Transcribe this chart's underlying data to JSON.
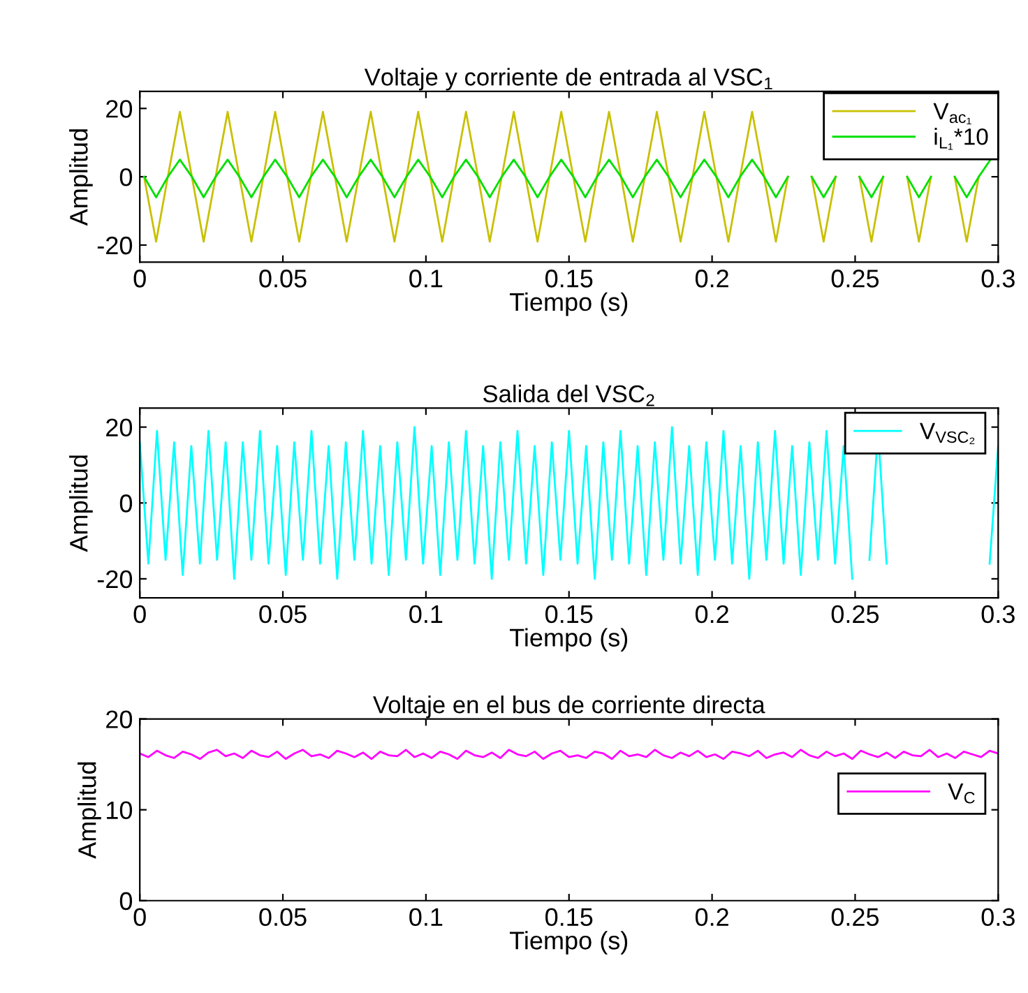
{
  "chart_data": [
    {
      "type": "line",
      "title": "Voltaje y corriente de entrada al VSC$_{1}$",
      "xlabel": "Tiempo (s)",
      "ylabel": "Amplitud",
      "x": [
        0.0015,
        0.0057,
        0.0098,
        0.014,
        0.0182,
        0.0223,
        0.0265,
        0.0307,
        0.0348,
        0.039,
        0.0432,
        0.0473,
        0.0515,
        0.0557,
        0.0598,
        0.064,
        0.0682,
        0.0723,
        0.0765,
        0.0807,
        0.0848,
        0.089,
        0.0932,
        0.0973,
        0.1015,
        0.1057,
        0.1098,
        0.114,
        0.1182,
        0.1223,
        0.1265,
        0.1307,
        0.1348,
        0.139,
        0.1432,
        0.1473,
        0.1515,
        0.1557,
        0.1598,
        0.164,
        0.1682,
        0.1723,
        0.1765,
        0.1807,
        0.1848,
        0.189,
        0.1932,
        0.1973,
        0.2015,
        0.2057,
        0.2098,
        0.214,
        0.2182,
        0.2223,
        0.2265,
        0.2307,
        0.2348,
        0.239,
        0.2432,
        0.2473,
        0.2515,
        0.2557,
        0.2598,
        0.264,
        0.2682,
        0.2723,
        0.2765,
        0.2807,
        0.2848,
        0.289,
        0.2932,
        0.2973
      ],
      "series": [
        {
          "name": "V$_{ac₁}$",
          "color": "#c8c000",
          "values": [
            0,
            -19,
            0,
            19,
            0,
            -19,
            0,
            19,
            0,
            -19,
            0,
            19,
            0,
            -19,
            0,
            19,
            0,
            -19,
            0,
            19,
            0,
            -19,
            0,
            19,
            0,
            -19,
            0,
            19,
            0,
            -19,
            0,
            19,
            0,
            -19,
            0,
            19,
            0,
            -19,
            0,
            19,
            0,
            -19,
            0,
            19,
            0,
            -19,
            0,
            19,
            0,
            -19,
            0,
            19,
            0,
            -19,
            0,
            null,
            0,
            -19,
            0,
            null,
            0,
            -19,
            0,
            null,
            0,
            -19,
            0,
            null,
            0,
            -19,
            0,
            null
          ]
        },
        {
          "name": "i$_{L₁}$*10",
          "color": "#00e000",
          "values": [
            0,
            -6,
            0,
            5,
            0,
            -6,
            0,
            5,
            0,
            -6,
            0,
            5,
            0,
            -6,
            0,
            5,
            0,
            -6,
            0,
            5,
            0,
            -6,
            0,
            5,
            0,
            -6,
            0,
            5,
            0,
            -6,
            0,
            5,
            0,
            -6,
            0,
            5,
            0,
            -6,
            0,
            5,
            0,
            -6,
            0,
            5,
            0,
            -6,
            0,
            5,
            0,
            -6,
            0,
            5,
            0,
            -6,
            0,
            null,
            0,
            -6,
            0,
            null,
            0,
            -6,
            0,
            null,
            0,
            -6,
            0,
            null,
            0,
            -6,
            0,
            5
          ]
        }
      ],
      "xlim": [
        0,
        0.3
      ],
      "xticks": [
        0,
        0.05,
        0.1,
        0.15,
        0.2,
        0.25,
        0.3
      ],
      "ylim": [
        -25,
        25
      ],
      "yticks": [
        -20,
        0,
        20
      ],
      "legend": "top right",
      "grid": false
    },
    {
      "type": "line",
      "title": "Salida del VSC$_{2}$",
      "xlabel": "Tiempo (s)",
      "ylabel": "Amplitud",
      "x": [
        0,
        0.003,
        0.006,
        0.009,
        0.012,
        0.015,
        0.018,
        0.021,
        0.024,
        0.027,
        0.03,
        0.033,
        0.036,
        0.039,
        0.042,
        0.045,
        0.048,
        0.051,
        0.054,
        0.057,
        0.06,
        0.063,
        0.066,
        0.069,
        0.072,
        0.075,
        0.078,
        0.081,
        0.084,
        0.087,
        0.09,
        0.093,
        0.096,
        0.099,
        0.102,
        0.105,
        0.108,
        0.111,
        0.114,
        0.117,
        0.12,
        0.123,
        0.126,
        0.129,
        0.132,
        0.135,
        0.138,
        0.141,
        0.144,
        0.147,
        0.15,
        0.153,
        0.156,
        0.159,
        0.162,
        0.165,
        0.168,
        0.171,
        0.174,
        0.177,
        0.18,
        0.183,
        0.186,
        0.189,
        0.192,
        0.195,
        0.198,
        0.201,
        0.204,
        0.207,
        0.21,
        0.213,
        0.216,
        0.219,
        0.222,
        0.225,
        0.228,
        0.231,
        0.234,
        0.237,
        0.24,
        0.243,
        0.246,
        0.249,
        0.252,
        0.255,
        0.258,
        0.261,
        0.264,
        0.267,
        0.27,
        0.273,
        0.276,
        0.279,
        0.282,
        0.285,
        0.288,
        0.291,
        0.294,
        0.297,
        0.3
      ],
      "series": [
        {
          "name": "V$_{VSC₂}$",
          "color": "#00ffff",
          "values": [
            16,
            -16,
            19,
            -15,
            16,
            -19,
            15,
            -16,
            19,
            -15,
            16,
            -20,
            16,
            -15,
            19,
            -16,
            15,
            -19,
            16,
            -15,
            19,
            -16,
            15,
            -20,
            16,
            -15,
            19,
            -16,
            15,
            -19,
            16,
            -15,
            20,
            -16,
            15,
            -19,
            16,
            -15,
            19,
            -16,
            15,
            -20,
            16,
            -15,
            19,
            -16,
            15,
            -19,
            16,
            -15,
            19,
            -16,
            15,
            -20,
            16,
            -15,
            19,
            -16,
            15,
            -19,
            16,
            -15,
            20,
            -16,
            15,
            -19,
            16,
            -15,
            19,
            -16,
            15,
            -20,
            16,
            -15,
            19,
            -16,
            15,
            -19,
            16,
            -15,
            19,
            -16,
            15,
            -20,
            null,
            -15,
            19,
            -16,
            null,
            null,
            null,
            null,
            null,
            null,
            null,
            null,
            null,
            null,
            null,
            -16,
            15
          ]
        }
      ],
      "xlim": [
        0,
        0.3
      ],
      "xticks": [
        0,
        0.05,
        0.1,
        0.15,
        0.2,
        0.25,
        0.3
      ],
      "ylim": [
        -25,
        25
      ],
      "yticks": [
        -20,
        0,
        20
      ],
      "legend": "top right",
      "grid": false
    },
    {
      "type": "line",
      "title": "Voltaje en el bus de corriente directa",
      "xlabel": "Tiempo (s)",
      "ylabel": "Amplitud",
      "x": [
        0,
        0.003,
        0.006,
        0.009,
        0.012,
        0.015,
        0.018,
        0.021,
        0.024,
        0.027,
        0.03,
        0.033,
        0.036,
        0.039,
        0.042,
        0.045,
        0.048,
        0.051,
        0.054,
        0.057,
        0.06,
        0.063,
        0.066,
        0.069,
        0.072,
        0.075,
        0.078,
        0.081,
        0.084,
        0.087,
        0.09,
        0.093,
        0.096,
        0.099,
        0.102,
        0.105,
        0.108,
        0.111,
        0.114,
        0.117,
        0.12,
        0.123,
        0.126,
        0.129,
        0.132,
        0.135,
        0.138,
        0.141,
        0.144,
        0.147,
        0.15,
        0.153,
        0.156,
        0.159,
        0.162,
        0.165,
        0.168,
        0.171,
        0.174,
        0.177,
        0.18,
        0.183,
        0.186,
        0.189,
        0.192,
        0.195,
        0.198,
        0.201,
        0.204,
        0.207,
        0.21,
        0.213,
        0.216,
        0.219,
        0.222,
        0.225,
        0.228,
        0.231,
        0.234,
        0.237,
        0.24,
        0.243,
        0.246,
        0.249,
        0.252,
        0.255,
        0.258,
        0.261,
        0.264,
        0.267,
        0.27,
        0.273,
        0.276,
        0.279,
        0.282,
        0.285,
        0.288,
        0.291,
        0.294,
        0.297,
        0.3
      ],
      "series": [
        {
          "name": "V$_{C}$",
          "color": "#ff00ff",
          "values": [
            16.2,
            15.8,
            16.5,
            16,
            15.7,
            16.4,
            16.1,
            15.6,
            16.3,
            16.6,
            15.9,
            16.2,
            15.7,
            16.5,
            16,
            15.8,
            16.4,
            15.6,
            16.2,
            16.6,
            15.9,
            16.1,
            15.7,
            16.5,
            16.2,
            15.8,
            16.3,
            15.6,
            16.4,
            16,
            15.9,
            16.6,
            15.8,
            16.2,
            15.7,
            16.4,
            16.1,
            15.6,
            16.5,
            16,
            15.8,
            16.3,
            15.7,
            16.6,
            16.1,
            15.9,
            16.4,
            15.6,
            16.2,
            16.5,
            15.8,
            16,
            15.7,
            16.4,
            16.2,
            15.6,
            16.5,
            15.9,
            16.1,
            15.8,
            16.6,
            16,
            15.7,
            16.3,
            15.9,
            16.5,
            15.8,
            16.1,
            15.6,
            16.4,
            16.2,
            15.9,
            16.5,
            15.7,
            16.1,
            16.3,
            15.8,
            16.6,
            16,
            15.7,
            16.4,
            15.9,
            16.2,
            15.6,
            16.5,
            16.1,
            15.8,
            16.3,
            15.7,
            16.4,
            16,
            15.9,
            16.6,
            15.8,
            16.2,
            15.7,
            16.4,
            16.1,
            15.8,
            16.5,
            16.2
          ]
        }
      ],
      "xlim": [
        0,
        0.3
      ],
      "xticks": [
        0,
        0.05,
        0.1,
        0.15,
        0.2,
        0.25,
        0.3
      ],
      "ylim": [
        0,
        20
      ],
      "yticks": [
        0,
        10,
        20
      ],
      "legend": "top right",
      "grid": false
    }
  ]
}
